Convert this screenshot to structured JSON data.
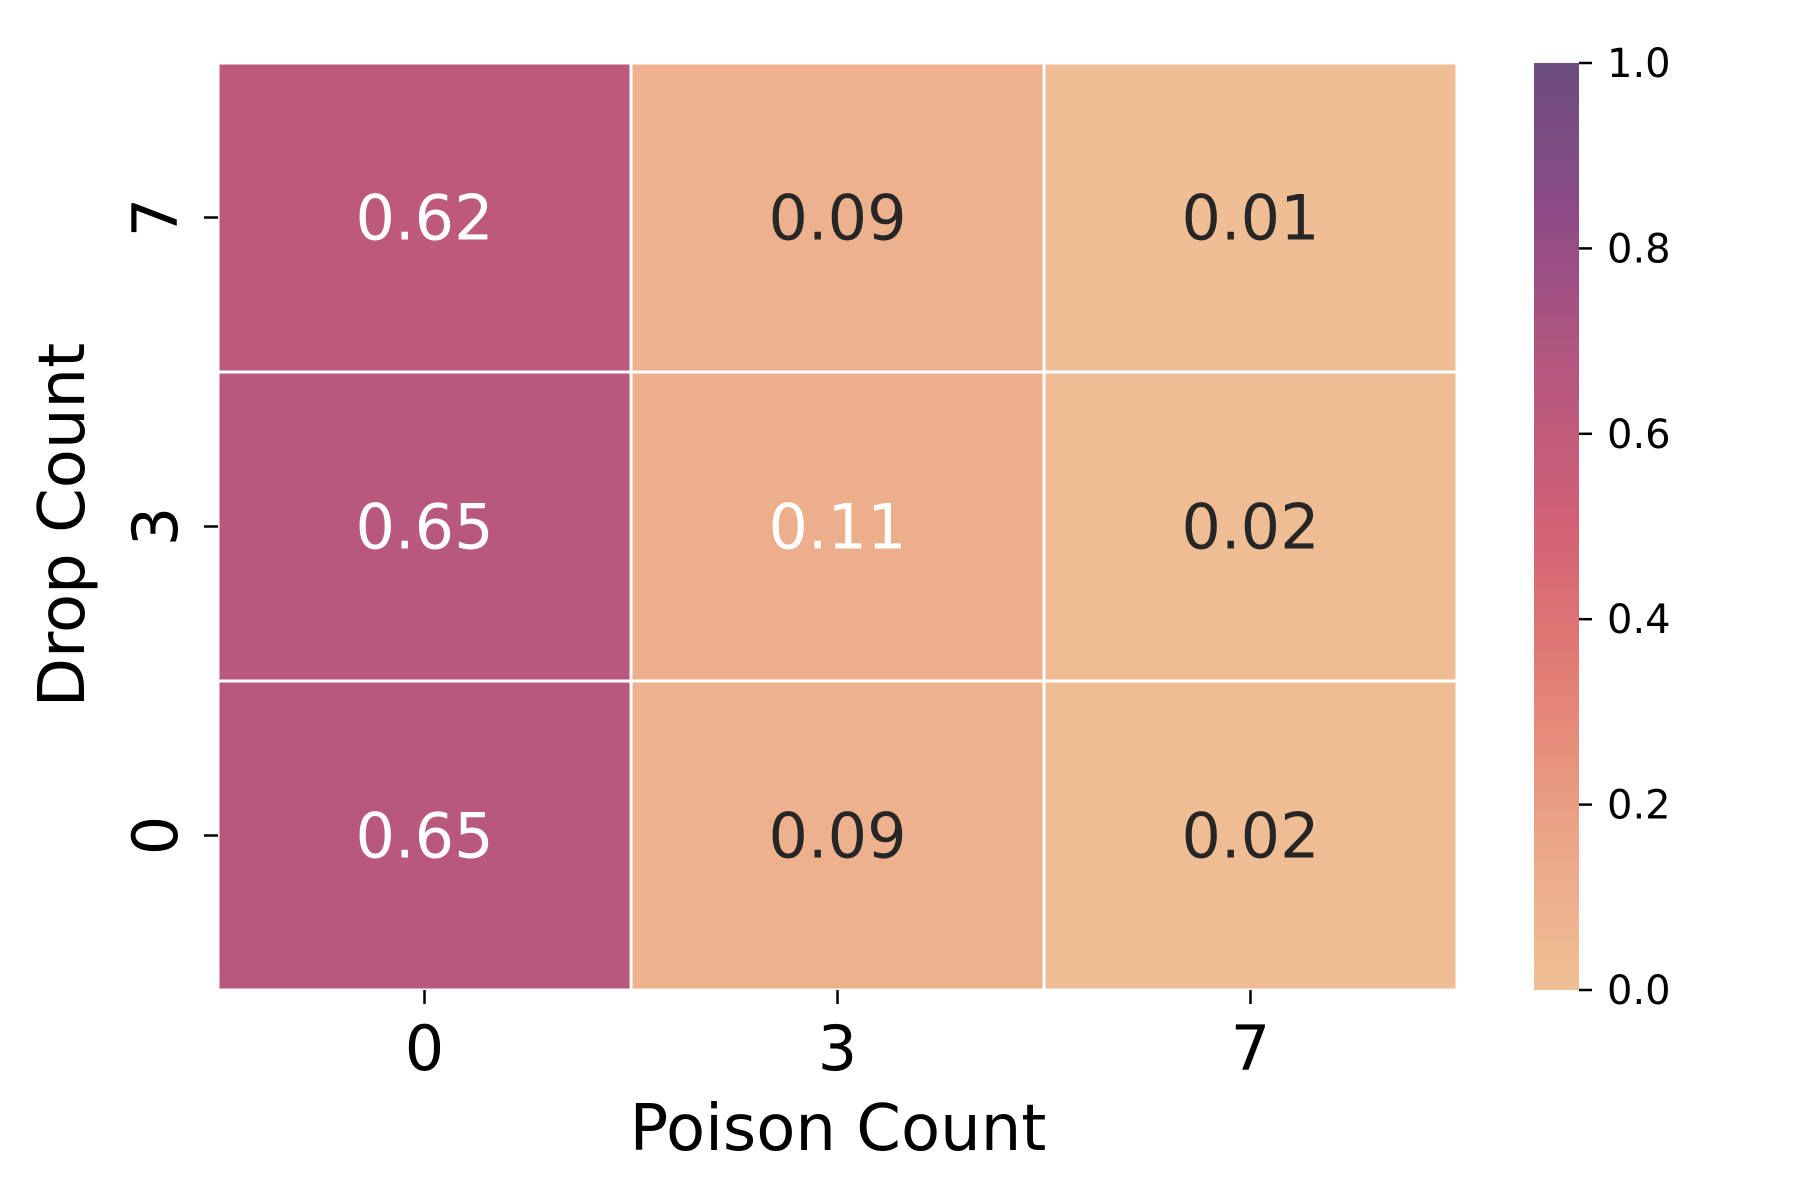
{
  "chart_data": {
    "type": "heatmap",
    "xlabel": "Poison Count",
    "ylabel": "Drop Count",
    "x_categories": [
      "0",
      "3",
      "7"
    ],
    "y_categories": [
      "7",
      "3",
      "0"
    ],
    "values": [
      [
        0.62,
        0.09,
        0.01
      ],
      [
        0.65,
        0.11,
        0.02
      ],
      [
        0.65,
        0.09,
        0.02
      ]
    ],
    "cell_labels": [
      [
        "0.62",
        "0.09",
        "0.01"
      ],
      [
        "0.65",
        "0.11",
        "0.02"
      ],
      [
        "0.65",
        "0.09",
        "0.02"
      ]
    ],
    "label_colors": [
      [
        "#ffffff",
        "#262626",
        "#262626"
      ],
      [
        "#ffffff",
        "#ffffff",
        "#262626"
      ],
      [
        "#ffffff",
        "#262626",
        "#262626"
      ]
    ],
    "colorbar": {
      "range": [
        0.0,
        1.0
      ],
      "ticks": [
        "0.0",
        "0.2",
        "0.4",
        "0.6",
        "0.8",
        "1.0"
      ],
      "colormap": "flare",
      "stops": [
        "#f0c096",
        "#eaa586",
        "#e37f74",
        "#d26175",
        "#b5577e",
        "#8e4b86",
        "#6b4d80"
      ]
    },
    "grid": false,
    "legend": "colorbar-right"
  }
}
